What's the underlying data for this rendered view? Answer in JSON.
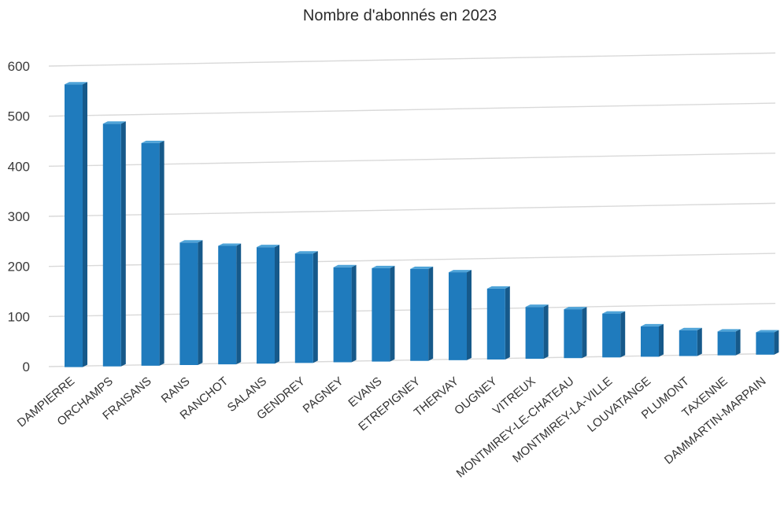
{
  "chart_data": {
    "type": "bar",
    "title": "Nombre d'abonnés en 2023",
    "xlabel": "",
    "ylabel": "",
    "categories": [
      "DAMPIERRE",
      "ORCHAMPS",
      "FRAISANS",
      "RANS",
      "RANCHOT",
      "SALANS",
      "GENDREY",
      "PAGNEY",
      "EVANS",
      "ETREPIGNEY",
      "THERVAY",
      "OUGNEY",
      "VITREUX",
      "MONTMIREY-LE-CHATEAU",
      "MONTMIREY-LA-VILLE",
      "LOUVATANGE",
      "PLUMONT",
      "TAXENNE",
      "DAMMARTIN-MARPAIN"
    ],
    "values": [
      563,
      483,
      443,
      243,
      235,
      231,
      217,
      188,
      185,
      182,
      174,
      140,
      102,
      96,
      86,
      59,
      50,
      46,
      43
    ],
    "ylim": [
      0,
      600
    ],
    "yticks": [
      "0",
      "100",
      "200",
      "300",
      "400",
      "500",
      "600"
    ],
    "grid": true,
    "legend": "none",
    "colors": {
      "bar_front": "#1f7bbd",
      "bar_side": "#16598a",
      "bar_top": "#4ea3d8",
      "grid": "#d9d9d9"
    }
  }
}
